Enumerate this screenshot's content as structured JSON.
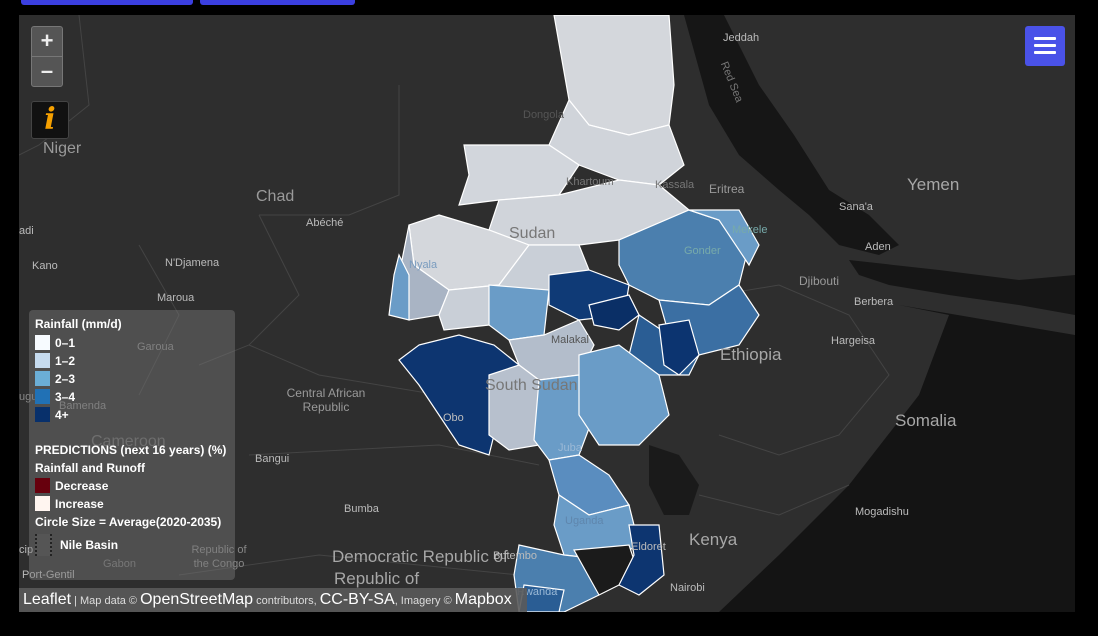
{
  "map": {
    "countries": {
      "niger": "Niger",
      "chad": "Chad",
      "sudan": "Sudan",
      "eritrea": "Eritrea",
      "yemen": "Yemen",
      "djibouti": "Djibouti",
      "ethiopia": "Ethiopia",
      "south_sudan": "South Sudan",
      "car": "Central African Republic",
      "cameroon": "Cameroon",
      "somalia": "Somalia",
      "kenya": "Kenya",
      "uganda": "Uganda",
      "drc": "Democratic Republic of",
      "roc": "Republic of the Congo"
    },
    "cities": {
      "jeddah": "Jeddah",
      "dongola": "Dongola",
      "khartoum": "Khartoum",
      "kassala": "Kassala",
      "sanaa": "Sana'a",
      "aden": "Aden",
      "makale": "Mekele",
      "gondar": "Gonder",
      "abeche": "Abéché",
      "ndjamena": "N'Djamena",
      "kano": "Kano",
      "maroua": "Maroua",
      "garoua": "Garoua",
      "nyala": "Nyala",
      "berbera": "Berbera",
      "hargeisa": "Hargeisa",
      "malakal": "Malakal",
      "bamenda": "Bamenda",
      "obo": "Obo",
      "juba": "Juba",
      "bangui": "Bangui",
      "bumba": "Bumba",
      "gulu": "Gulu",
      "butembo": "Butembo",
      "eldoret": "Eldoret",
      "nairobi": "Nairobi",
      "mogadishu": "Mogadishu",
      "gabon": "Gabon",
      "port_gentil": "Port-Gentil",
      "kigali": "Rwanda",
      "edge_adi": "adi",
      "edge_ugu": "ugu",
      "edge_cip": "cip"
    },
    "sea": "Red Sea"
  },
  "controls": {
    "zoom_in": "+",
    "zoom_out": "–",
    "info": "i"
  },
  "legend": {
    "rainfall_title": "Rainfall (mm/d)",
    "rainfall_classes": [
      {
        "label": "0–1",
        "color": "#f7fbff"
      },
      {
        "label": "1–2",
        "color": "#c6dbef"
      },
      {
        "label": "2–3",
        "color": "#6baed6"
      },
      {
        "label": "3–4",
        "color": "#2171b5"
      },
      {
        "label": "4+",
        "color": "#08306b"
      }
    ],
    "predictions_title": "PREDICTIONS (next 16 years) (%)",
    "runoff_title": "Rainfall and Runoff",
    "decrease": "Decrease",
    "increase": "Increase",
    "decrease_color": "#67000d",
    "increase_color": "#fff5f0",
    "circle_note": "Circle Size = Average(2020-2035)",
    "basin": "Nile Basin"
  },
  "attribution": {
    "leaflet": "Leaflet",
    "map_data": " | Map data © ",
    "osm": "OpenStreetMap",
    "contributors": " contributors, ",
    "license": "CC-BY-SA",
    "imagery": ", Imagery © ",
    "mapbox": "Mapbox"
  }
}
